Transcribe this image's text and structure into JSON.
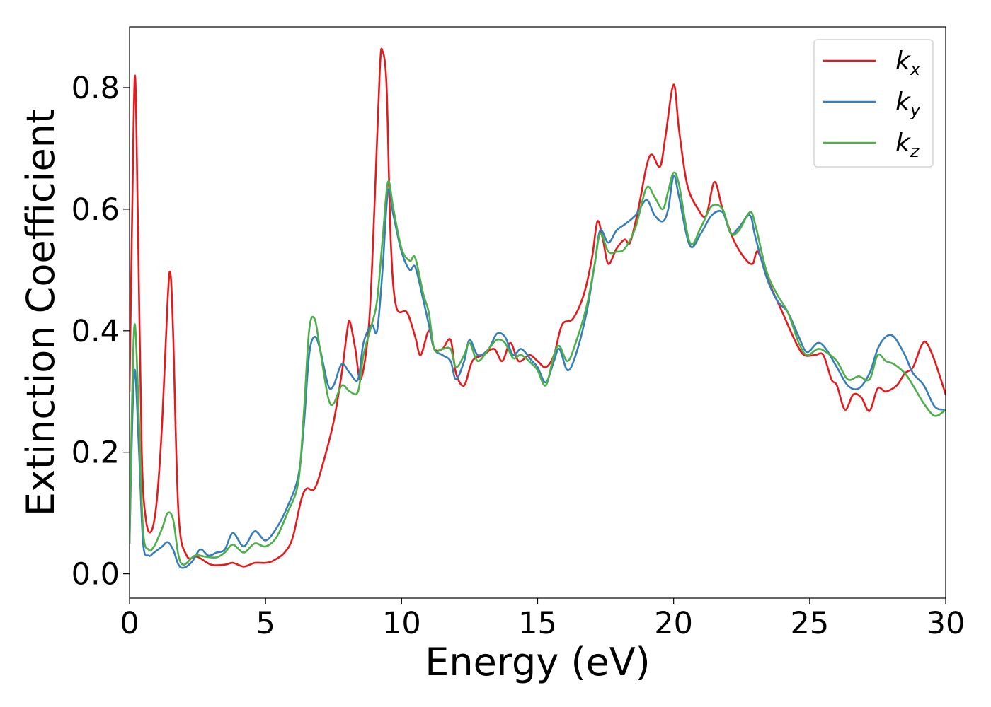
{
  "chart_data": {
    "type": "line",
    "title": "",
    "xlabel": "Energy (eV)",
    "ylabel": "Extinction Coefficient",
    "xlim": [
      0,
      30
    ],
    "ylim": [
      -0.04,
      0.9
    ],
    "xticks": [
      0,
      5,
      10,
      15,
      20,
      25,
      30
    ],
    "xtick_labels": [
      "0",
      "5",
      "10",
      "15",
      "20",
      "25",
      "30"
    ],
    "yticks": [
      0.0,
      0.2,
      0.4,
      0.6,
      0.8
    ],
    "ytick_labels": [
      "0.0",
      "0.2",
      "0.4",
      "0.6",
      "0.8"
    ],
    "grid": false,
    "legend_position": "top-right",
    "series": [
      {
        "name": "k_x",
        "label_base": "k",
        "label_sub": "x",
        "color": "#e41a1c",
        "points": [
          [
            0,
            0.3
          ],
          [
            0.1,
            0.6
          ],
          [
            0.2,
            0.82
          ],
          [
            0.3,
            0.6
          ],
          [
            0.45,
            0.2
          ],
          [
            0.6,
            0.09
          ],
          [
            0.8,
            0.07
          ],
          [
            1.0,
            0.12
          ],
          [
            1.2,
            0.25
          ],
          [
            1.4,
            0.45
          ],
          [
            1.5,
            0.495
          ],
          [
            1.6,
            0.4
          ],
          [
            1.8,
            0.1
          ],
          [
            2.1,
            0.03
          ],
          [
            2.5,
            0.028
          ],
          [
            3.0,
            0.015
          ],
          [
            3.5,
            0.015
          ],
          [
            3.8,
            0.018
          ],
          [
            4.2,
            0.012
          ],
          [
            4.6,
            0.018
          ],
          [
            5.0,
            0.018
          ],
          [
            5.3,
            0.022
          ],
          [
            5.7,
            0.035
          ],
          [
            6.0,
            0.06
          ],
          [
            6.3,
            0.12
          ],
          [
            6.5,
            0.14
          ],
          [
            6.8,
            0.14
          ],
          [
            7.1,
            0.18
          ],
          [
            7.5,
            0.25
          ],
          [
            7.8,
            0.33
          ],
          [
            8.0,
            0.4
          ],
          [
            8.1,
            0.415
          ],
          [
            8.3,
            0.37
          ],
          [
            8.5,
            0.32
          ],
          [
            8.8,
            0.41
          ],
          [
            9.0,
            0.6
          ],
          [
            9.2,
            0.83
          ],
          [
            9.3,
            0.86
          ],
          [
            9.45,
            0.8
          ],
          [
            9.6,
            0.55
          ],
          [
            9.8,
            0.44
          ],
          [
            10.2,
            0.43
          ],
          [
            10.5,
            0.39
          ],
          [
            10.7,
            0.36
          ],
          [
            11.0,
            0.4
          ],
          [
            11.2,
            0.37
          ],
          [
            11.5,
            0.37
          ],
          [
            11.8,
            0.385
          ],
          [
            12.0,
            0.33
          ],
          [
            12.3,
            0.31
          ],
          [
            12.6,
            0.35
          ],
          [
            13.0,
            0.36
          ],
          [
            13.4,
            0.37
          ],
          [
            13.7,
            0.35
          ],
          [
            14.0,
            0.38
          ],
          [
            14.3,
            0.35
          ],
          [
            14.7,
            0.36
          ],
          [
            15.0,
            0.35
          ],
          [
            15.3,
            0.34
          ],
          [
            15.6,
            0.36
          ],
          [
            15.9,
            0.41
          ],
          [
            16.3,
            0.42
          ],
          [
            16.7,
            0.46
          ],
          [
            17.0,
            0.52
          ],
          [
            17.2,
            0.58
          ],
          [
            17.4,
            0.55
          ],
          [
            17.6,
            0.51
          ],
          [
            17.9,
            0.535
          ],
          [
            18.2,
            0.55
          ],
          [
            18.4,
            0.545
          ],
          [
            18.7,
            0.6
          ],
          [
            19.0,
            0.67
          ],
          [
            19.2,
            0.69
          ],
          [
            19.5,
            0.67
          ],
          [
            19.7,
            0.72
          ],
          [
            20.0,
            0.805
          ],
          [
            20.2,
            0.73
          ],
          [
            20.5,
            0.64
          ],
          [
            20.9,
            0.6
          ],
          [
            21.2,
            0.59
          ],
          [
            21.5,
            0.645
          ],
          [
            21.8,
            0.6
          ],
          [
            22.2,
            0.55
          ],
          [
            22.6,
            0.52
          ],
          [
            22.9,
            0.51
          ],
          [
            23.1,
            0.53
          ],
          [
            23.5,
            0.48
          ],
          [
            24.0,
            0.43
          ],
          [
            24.5,
            0.38
          ],
          [
            24.8,
            0.36
          ],
          [
            25.2,
            0.36
          ],
          [
            25.5,
            0.36
          ],
          [
            25.8,
            0.32
          ],
          [
            26.0,
            0.31
          ],
          [
            26.3,
            0.27
          ],
          [
            26.6,
            0.295
          ],
          [
            26.9,
            0.29
          ],
          [
            27.2,
            0.268
          ],
          [
            27.5,
            0.305
          ],
          [
            27.8,
            0.3
          ],
          [
            28.2,
            0.31
          ],
          [
            28.5,
            0.33
          ],
          [
            28.8,
            0.34
          ],
          [
            29.1,
            0.375
          ],
          [
            29.3,
            0.38
          ],
          [
            29.6,
            0.35
          ],
          [
            30.0,
            0.295
          ]
        ]
      },
      {
        "name": "k_y",
        "label_base": "k",
        "label_sub": "y",
        "color": "#377eb8",
        "points": [
          [
            0,
            0.05
          ],
          [
            0.1,
            0.25
          ],
          [
            0.2,
            0.335
          ],
          [
            0.35,
            0.2
          ],
          [
            0.5,
            0.05
          ],
          [
            0.7,
            0.03
          ],
          [
            0.9,
            0.035
          ],
          [
            1.2,
            0.045
          ],
          [
            1.4,
            0.052
          ],
          [
            1.6,
            0.04
          ],
          [
            1.8,
            0.015
          ],
          [
            2.0,
            0.01
          ],
          [
            2.3,
            0.02
          ],
          [
            2.6,
            0.04
          ],
          [
            2.9,
            0.03
          ],
          [
            3.2,
            0.035
          ],
          [
            3.5,
            0.04
          ],
          [
            3.8,
            0.067
          ],
          [
            4.2,
            0.045
          ],
          [
            4.6,
            0.07
          ],
          [
            5.0,
            0.055
          ],
          [
            5.4,
            0.075
          ],
          [
            5.8,
            0.11
          ],
          [
            6.2,
            0.16
          ],
          [
            6.4,
            0.24
          ],
          [
            6.6,
            0.36
          ],
          [
            6.8,
            0.39
          ],
          [
            7.0,
            0.37
          ],
          [
            7.3,
            0.31
          ],
          [
            7.5,
            0.31
          ],
          [
            7.8,
            0.345
          ],
          [
            8.1,
            0.33
          ],
          [
            8.4,
            0.32
          ],
          [
            8.6,
            0.38
          ],
          [
            8.9,
            0.41
          ],
          [
            9.1,
            0.4
          ],
          [
            9.3,
            0.5
          ],
          [
            9.5,
            0.63
          ],
          [
            9.7,
            0.59
          ],
          [
            10.0,
            0.53
          ],
          [
            10.3,
            0.5
          ],
          [
            10.5,
            0.505
          ],
          [
            10.8,
            0.45
          ],
          [
            11.0,
            0.41
          ],
          [
            11.2,
            0.37
          ],
          [
            11.5,
            0.36
          ],
          [
            11.8,
            0.35
          ],
          [
            12.0,
            0.32
          ],
          [
            12.3,
            0.35
          ],
          [
            12.5,
            0.385
          ],
          [
            12.8,
            0.36
          ],
          [
            13.2,
            0.37
          ],
          [
            13.5,
            0.395
          ],
          [
            13.8,
            0.39
          ],
          [
            14.1,
            0.36
          ],
          [
            14.4,
            0.37
          ],
          [
            14.8,
            0.35
          ],
          [
            15.0,
            0.34
          ],
          [
            15.3,
            0.315
          ],
          [
            15.6,
            0.35
          ],
          [
            15.8,
            0.37
          ],
          [
            16.1,
            0.335
          ],
          [
            16.4,
            0.36
          ],
          [
            16.8,
            0.43
          ],
          [
            17.1,
            0.51
          ],
          [
            17.3,
            0.565
          ],
          [
            17.6,
            0.545
          ],
          [
            17.9,
            0.565
          ],
          [
            18.2,
            0.575
          ],
          [
            18.6,
            0.59
          ],
          [
            19.0,
            0.615
          ],
          [
            19.3,
            0.59
          ],
          [
            19.6,
            0.58
          ],
          [
            19.8,
            0.6
          ],
          [
            20.0,
            0.655
          ],
          [
            20.2,
            0.62
          ],
          [
            20.6,
            0.54
          ],
          [
            21.0,
            0.56
          ],
          [
            21.4,
            0.59
          ],
          [
            21.8,
            0.595
          ],
          [
            22.1,
            0.56
          ],
          [
            22.4,
            0.57
          ],
          [
            22.8,
            0.59
          ],
          [
            23.0,
            0.555
          ],
          [
            23.4,
            0.49
          ],
          [
            23.8,
            0.45
          ],
          [
            24.2,
            0.43
          ],
          [
            24.6,
            0.39
          ],
          [
            24.9,
            0.365
          ],
          [
            25.3,
            0.38
          ],
          [
            25.6,
            0.37
          ],
          [
            26.0,
            0.34
          ],
          [
            26.4,
            0.31
          ],
          [
            26.8,
            0.305
          ],
          [
            27.2,
            0.33
          ],
          [
            27.5,
            0.37
          ],
          [
            27.8,
            0.39
          ],
          [
            28.1,
            0.39
          ],
          [
            28.5,
            0.36
          ],
          [
            28.8,
            0.33
          ],
          [
            29.2,
            0.31
          ],
          [
            29.6,
            0.275
          ],
          [
            30.0,
            0.27
          ]
        ]
      },
      {
        "name": "k_z",
        "label_base": "k",
        "label_sub": "z",
        "color": "#4daf4a",
        "points": [
          [
            0,
            0.05
          ],
          [
            0.1,
            0.3
          ],
          [
            0.2,
            0.41
          ],
          [
            0.35,
            0.25
          ],
          [
            0.5,
            0.07
          ],
          [
            0.7,
            0.04
          ],
          [
            0.9,
            0.045
          ],
          [
            1.2,
            0.075
          ],
          [
            1.4,
            0.1
          ],
          [
            1.6,
            0.09
          ],
          [
            1.8,
            0.03
          ],
          [
            2.0,
            0.015
          ],
          [
            2.4,
            0.03
          ],
          [
            2.8,
            0.028
          ],
          [
            3.2,
            0.027
          ],
          [
            3.5,
            0.035
          ],
          [
            3.8,
            0.048
          ],
          [
            4.2,
            0.035
          ],
          [
            4.6,
            0.05
          ],
          [
            5.0,
            0.045
          ],
          [
            5.4,
            0.06
          ],
          [
            5.8,
            0.1
          ],
          [
            6.2,
            0.15
          ],
          [
            6.4,
            0.26
          ],
          [
            6.6,
            0.4
          ],
          [
            6.8,
            0.42
          ],
          [
            7.0,
            0.37
          ],
          [
            7.3,
            0.29
          ],
          [
            7.5,
            0.28
          ],
          [
            7.8,
            0.31
          ],
          [
            8.1,
            0.3
          ],
          [
            8.4,
            0.3
          ],
          [
            8.6,
            0.36
          ],
          [
            8.9,
            0.41
          ],
          [
            9.1,
            0.45
          ],
          [
            9.3,
            0.55
          ],
          [
            9.5,
            0.645
          ],
          [
            9.7,
            0.6
          ],
          [
            10.0,
            0.535
          ],
          [
            10.3,
            0.515
          ],
          [
            10.5,
            0.52
          ],
          [
            10.8,
            0.46
          ],
          [
            11.0,
            0.43
          ],
          [
            11.2,
            0.37
          ],
          [
            11.5,
            0.37
          ],
          [
            11.8,
            0.37
          ],
          [
            12.0,
            0.34
          ],
          [
            12.3,
            0.36
          ],
          [
            12.5,
            0.38
          ],
          [
            12.8,
            0.35
          ],
          [
            13.2,
            0.37
          ],
          [
            13.5,
            0.385
          ],
          [
            13.8,
            0.38
          ],
          [
            14.1,
            0.355
          ],
          [
            14.4,
            0.36
          ],
          [
            14.8,
            0.345
          ],
          [
            15.0,
            0.335
          ],
          [
            15.3,
            0.31
          ],
          [
            15.6,
            0.36
          ],
          [
            15.8,
            0.375
          ],
          [
            16.1,
            0.35
          ],
          [
            16.4,
            0.38
          ],
          [
            16.8,
            0.44
          ],
          [
            17.1,
            0.51
          ],
          [
            17.3,
            0.56
          ],
          [
            17.6,
            0.53
          ],
          [
            17.9,
            0.53
          ],
          [
            18.2,
            0.535
          ],
          [
            18.6,
            0.57
          ],
          [
            19.0,
            0.635
          ],
          [
            19.3,
            0.62
          ],
          [
            19.6,
            0.6
          ],
          [
            19.8,
            0.63
          ],
          [
            20.0,
            0.66
          ],
          [
            20.2,
            0.64
          ],
          [
            20.6,
            0.545
          ],
          [
            21.0,
            0.57
          ],
          [
            21.4,
            0.605
          ],
          [
            21.8,
            0.6
          ],
          [
            22.1,
            0.56
          ],
          [
            22.4,
            0.565
          ],
          [
            22.8,
            0.595
          ],
          [
            23.0,
            0.575
          ],
          [
            23.4,
            0.5
          ],
          [
            23.8,
            0.46
          ],
          [
            24.2,
            0.43
          ],
          [
            24.6,
            0.38
          ],
          [
            24.9,
            0.36
          ],
          [
            25.3,
            0.37
          ],
          [
            25.6,
            0.365
          ],
          [
            26.0,
            0.35
          ],
          [
            26.4,
            0.32
          ],
          [
            26.8,
            0.325
          ],
          [
            27.2,
            0.32
          ],
          [
            27.5,
            0.36
          ],
          [
            27.8,
            0.35
          ],
          [
            28.1,
            0.345
          ],
          [
            28.5,
            0.33
          ],
          [
            28.8,
            0.31
          ],
          [
            29.2,
            0.28
          ],
          [
            29.6,
            0.26
          ],
          [
            30.0,
            0.27
          ]
        ]
      }
    ]
  }
}
